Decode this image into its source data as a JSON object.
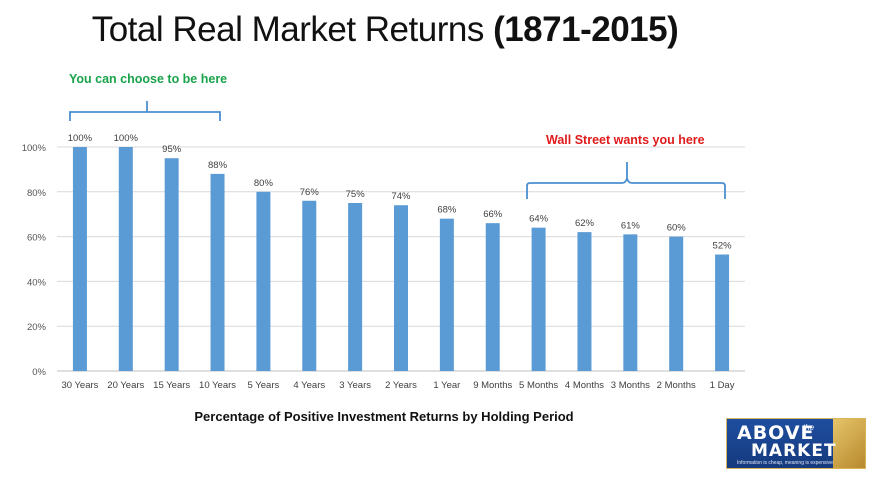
{
  "title_main": "Total Real Market Returns",
  "title_years": "(1871-2015)",
  "annotations": {
    "left": "You can choose to be here",
    "right": "Wall Street wants you here"
  },
  "logo": {
    "line1": "ABOVE",
    "the": "the",
    "line2": "MARKET",
    "tagline": "Information is cheap, meaning is expensive."
  },
  "colors": {
    "bar": "#5b9bd5",
    "brace": "#4a8fd0",
    "green": "#1aa34a",
    "red": "#e01b1b"
  },
  "chart_data": {
    "type": "bar",
    "title": "Total Real Market Returns (1871-2015)",
    "xlabel": "Percentage of Positive Investment Returns by Holding Period",
    "ylabel": "",
    "categories": [
      "30 Years",
      "20 Years",
      "15 Years",
      "10 Years",
      "5 Years",
      "4 Years",
      "3 Years",
      "2 Years",
      "1 Year",
      "9 Months",
      "5 Months",
      "4 Months",
      "3 Months",
      "2 Months",
      "1 Day"
    ],
    "values": [
      100,
      100,
      95,
      88,
      80,
      76,
      75,
      74,
      68,
      66,
      64,
      62,
      61,
      60,
      52
    ],
    "data_labels": [
      "100%",
      "100%",
      "95%",
      "88%",
      "80%",
      "76%",
      "75%",
      "74%",
      "68%",
      "66%",
      "64%",
      "62%",
      "61%",
      "60%",
      "52%"
    ],
    "yticks": [
      0,
      20,
      40,
      60,
      80,
      100
    ],
    "ytick_labels": [
      "0%",
      "20%",
      "40%",
      "60%",
      "80%",
      "100%"
    ],
    "ylim": [
      0,
      100
    ],
    "grid": true,
    "legend": "none"
  }
}
